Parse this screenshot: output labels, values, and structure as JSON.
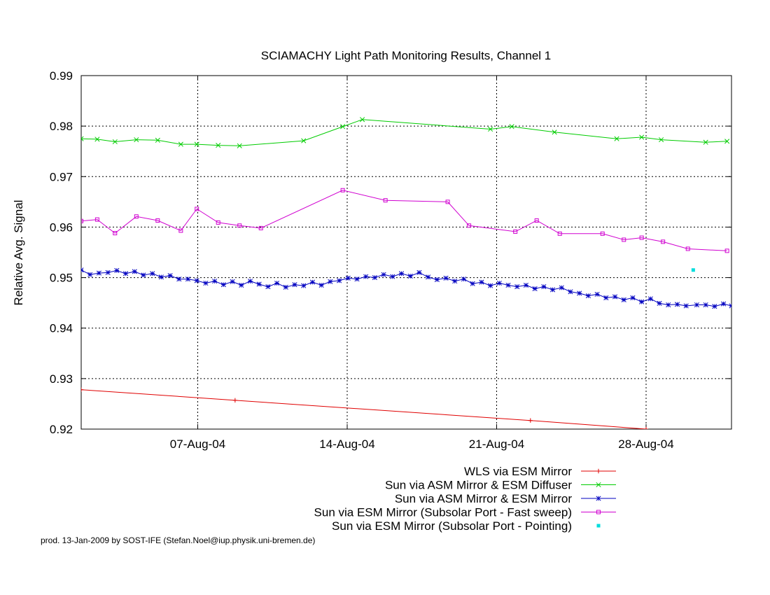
{
  "chart_data": {
    "type": "line",
    "title": "SCIAMACHY Light Path Monitoring Results, Channel 1",
    "xlabel": "",
    "ylabel": "Relative Avg. Signal",
    "x_unit": "date",
    "xlim": [
      "2004-08-01T13:00",
      "2004-09-01T00:00"
    ],
    "ylim": [
      0.92,
      0.99
    ],
    "x_ticks": [
      {
        "date": "2004-08-07",
        "label": "07-Aug-04"
      },
      {
        "date": "2004-08-14",
        "label": "14-Aug-04"
      },
      {
        "date": "2004-08-21",
        "label": "21-Aug-04"
      },
      {
        "date": "2004-08-28",
        "label": "28-Aug-04"
      }
    ],
    "y_ticks": [
      "0.92",
      "0.93",
      "0.94",
      "0.95",
      "0.96",
      "0.97",
      "0.98",
      "0.99"
    ],
    "grid": true,
    "legend_position": "bottom-right, below plot",
    "footer": "prod. 13-Jan-2009 by SOST-IFE (Stefan.Noel@iup.physik.uni-bremen.de)",
    "series": [
      {
        "name": "WLS via ESM Mirror",
        "color": "#e00000",
        "marker": "plus",
        "points": [
          [
            "2004-08-01T13:00",
            0.9278
          ],
          [
            "2004-08-08T18:00",
            0.9257
          ],
          [
            "2004-08-22T14:00",
            0.9217
          ],
          [
            "2004-08-28T00:00",
            0.92
          ]
        ]
      },
      {
        "name": "Sun via ASM Mirror & ESM Diffuser",
        "color": "#00cc00",
        "marker": "cross",
        "points": [
          [
            "2004-08-01T13:00",
            0.9775
          ],
          [
            "2004-08-02T07:00",
            0.9774
          ],
          [
            "2004-08-03T03:00",
            0.9769
          ],
          [
            "2004-08-04T03:00",
            0.9773
          ],
          [
            "2004-08-05T03:00",
            0.9772
          ],
          [
            "2004-08-06T05:00",
            0.9764
          ],
          [
            "2004-08-06T23:00",
            0.9764
          ],
          [
            "2004-08-07T23:00",
            0.9762
          ],
          [
            "2004-08-08T23:00",
            0.9761
          ],
          [
            "2004-08-11T23:00",
            0.9771
          ],
          [
            "2004-08-13T19:00",
            0.9799
          ],
          [
            "2004-08-14T17:00",
            0.9813
          ],
          [
            "2004-08-20T17:00",
            0.9794
          ],
          [
            "2004-08-21T17:00",
            0.9799
          ],
          [
            "2004-08-23T17:00",
            0.9788
          ],
          [
            "2004-08-26T15:00",
            0.9775
          ],
          [
            "2004-08-27T19:00",
            0.9778
          ],
          [
            "2004-08-28T17:00",
            0.9773
          ],
          [
            "2004-08-30T19:00",
            0.9768
          ],
          [
            "2004-08-31T19:00",
            0.977
          ]
        ]
      },
      {
        "name": "Sun via ASM Mirror & ESM Mirror",
        "color": "#0000c0",
        "marker": "star",
        "points": [
          [
            "2004-08-01T13:00",
            0.9515
          ],
          [
            "2004-08-01T23:00",
            0.9506
          ],
          [
            "2004-08-02T09:00",
            0.9509
          ],
          [
            "2004-08-02T19:00",
            0.951
          ],
          [
            "2004-08-03T05:00",
            0.9514
          ],
          [
            "2004-08-03T15:00",
            0.9508
          ],
          [
            "2004-08-04T01:00",
            0.9512
          ],
          [
            "2004-08-04T11:00",
            0.9505
          ],
          [
            "2004-08-04T21:00",
            0.9508
          ],
          [
            "2004-08-05T07:00",
            0.9501
          ],
          [
            "2004-08-05T17:00",
            0.9504
          ],
          [
            "2004-08-06T03:00",
            0.9497
          ],
          [
            "2004-08-06T13:00",
            0.9497
          ],
          [
            "2004-08-06T23:00",
            0.9494
          ],
          [
            "2004-08-07T09:00",
            0.9489
          ],
          [
            "2004-08-07T19:00",
            0.9493
          ],
          [
            "2004-08-08T05:00",
            0.9486
          ],
          [
            "2004-08-08T15:00",
            0.9492
          ],
          [
            "2004-08-09T01:00",
            0.9485
          ],
          [
            "2004-08-09T11:00",
            0.9493
          ],
          [
            "2004-08-09T21:00",
            0.9487
          ],
          [
            "2004-08-10T07:00",
            0.9482
          ],
          [
            "2004-08-10T17:00",
            0.9489
          ],
          [
            "2004-08-11T03:00",
            0.9481
          ],
          [
            "2004-08-11T13:00",
            0.9486
          ],
          [
            "2004-08-11T23:00",
            0.9484
          ],
          [
            "2004-08-12T09:00",
            0.9491
          ],
          [
            "2004-08-12T19:00",
            0.9485
          ],
          [
            "2004-08-13T05:00",
            0.9492
          ],
          [
            "2004-08-13T15:00",
            0.9494
          ],
          [
            "2004-08-14T01:00",
            0.9499
          ],
          [
            "2004-08-14T11:00",
            0.9497
          ],
          [
            "2004-08-14T21:00",
            0.9502
          ],
          [
            "2004-08-15T07:00",
            0.95
          ],
          [
            "2004-08-15T17:00",
            0.9506
          ],
          [
            "2004-08-16T03:00",
            0.9502
          ],
          [
            "2004-08-16T13:00",
            0.9508
          ],
          [
            "2004-08-16T23:00",
            0.9503
          ],
          [
            "2004-08-17T09:00",
            0.951
          ],
          [
            "2004-08-17T19:00",
            0.9501
          ],
          [
            "2004-08-18T05:00",
            0.9496
          ],
          [
            "2004-08-18T15:00",
            0.9499
          ],
          [
            "2004-08-19T01:00",
            0.9493
          ],
          [
            "2004-08-19T11:00",
            0.9497
          ],
          [
            "2004-08-19T21:00",
            0.9488
          ],
          [
            "2004-08-20T07:00",
            0.9491
          ],
          [
            "2004-08-20T17:00",
            0.9484
          ],
          [
            "2004-08-21T03:00",
            0.9489
          ],
          [
            "2004-08-21T13:00",
            0.9485
          ],
          [
            "2004-08-21T23:00",
            0.9482
          ],
          [
            "2004-08-22T09:00",
            0.9485
          ],
          [
            "2004-08-22T19:00",
            0.9478
          ],
          [
            "2004-08-23T05:00",
            0.9482
          ],
          [
            "2004-08-23T15:00",
            0.9476
          ],
          [
            "2004-08-24T01:00",
            0.948
          ],
          [
            "2004-08-24T11:00",
            0.9472
          ],
          [
            "2004-08-24T21:00",
            0.9469
          ],
          [
            "2004-08-25T07:00",
            0.9464
          ],
          [
            "2004-08-25T17:00",
            0.9467
          ],
          [
            "2004-08-26T03:00",
            0.946
          ],
          [
            "2004-08-26T13:00",
            0.9462
          ],
          [
            "2004-08-26T23:00",
            0.9456
          ],
          [
            "2004-08-27T09:00",
            0.946
          ],
          [
            "2004-08-27T19:00",
            0.9452
          ],
          [
            "2004-08-28T05:00",
            0.9458
          ],
          [
            "2004-08-28T15:00",
            0.9449
          ],
          [
            "2004-08-29T01:00",
            0.9446
          ],
          [
            "2004-08-29T11:00",
            0.9447
          ],
          [
            "2004-08-29T21:00",
            0.9444
          ],
          [
            "2004-08-30T09:00",
            0.9446
          ],
          [
            "2004-08-30T19:00",
            0.9446
          ],
          [
            "2004-08-31T05:00",
            0.9443
          ],
          [
            "2004-08-31T15:00",
            0.9448
          ],
          [
            "2004-09-01T00:00",
            0.9444
          ]
        ]
      },
      {
        "name": "Sun via ESM Mirror (Subsolar Port - Fast sweep)",
        "color": "#d000d0",
        "marker": "square",
        "points": [
          [
            "2004-08-01T13:00",
            0.9612
          ],
          [
            "2004-08-02T07:00",
            0.9615
          ],
          [
            "2004-08-03T03:00",
            0.9588
          ],
          [
            "2004-08-04T03:00",
            0.9621
          ],
          [
            "2004-08-05T03:00",
            0.9613
          ],
          [
            "2004-08-06T05:00",
            0.9593
          ],
          [
            "2004-08-06T23:00",
            0.9636
          ],
          [
            "2004-08-07T23:00",
            0.9609
          ],
          [
            "2004-08-08T23:00",
            0.9603
          ],
          [
            "2004-08-09T23:00",
            0.9598
          ],
          [
            "2004-08-13T19:00",
            0.9673
          ],
          [
            "2004-08-15T19:00",
            0.9653
          ],
          [
            "2004-08-18T17:00",
            0.965
          ],
          [
            "2004-08-19T17:00",
            0.9603
          ],
          [
            "2004-08-21T21:00",
            0.9591
          ],
          [
            "2004-08-22T21:00",
            0.9613
          ],
          [
            "2004-08-23T23:00",
            0.9587
          ],
          [
            "2004-08-25T23:00",
            0.9587
          ],
          [
            "2004-08-26T23:00",
            0.9575
          ],
          [
            "2004-08-27T19:00",
            0.9579
          ],
          [
            "2004-08-28T19:00",
            0.9571
          ],
          [
            "2004-08-29T23:00",
            0.9557
          ],
          [
            "2004-08-31T19:00",
            0.9553
          ]
        ]
      },
      {
        "name": "Sun via ESM Mirror (Subsolar Port - Pointing)",
        "color": "#00dddd",
        "marker": "dot",
        "points": [
          [
            "2004-08-30T05:00",
            0.9515
          ]
        ]
      }
    ]
  }
}
